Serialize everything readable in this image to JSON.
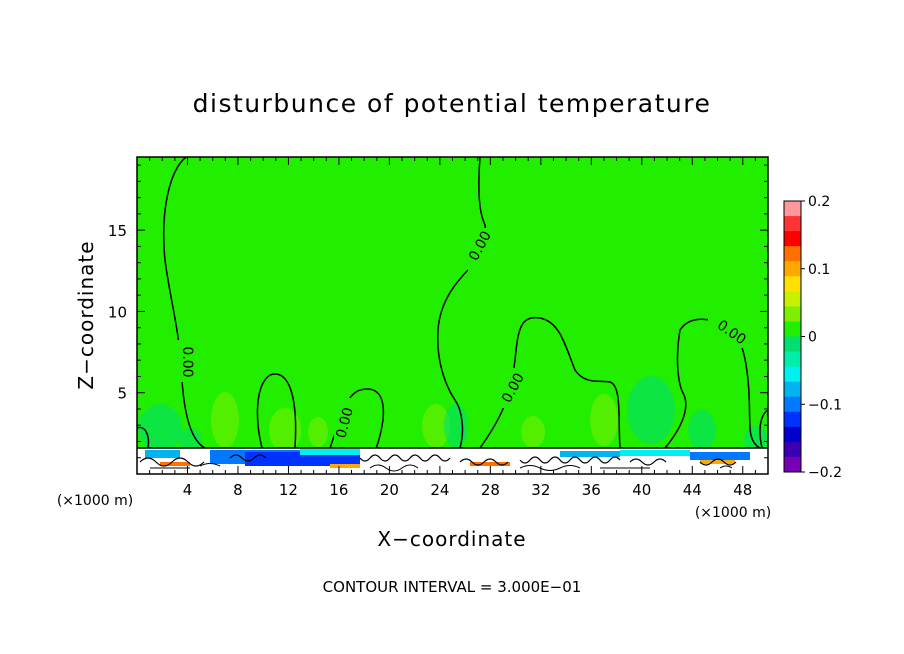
{
  "chart_data": {
    "type": "heatmap",
    "title": "disturbunce of potential temperature",
    "xlabel": "X−coordinate",
    "ylabel": "Z−coordinate",
    "x_unit_left": "(×1000 m)",
    "x_unit_right": "(×1000 m)",
    "footer": "CONTOUR INTERVAL = 3.000E−01",
    "xlim": [
      0,
      50
    ],
    "ylim": [
      0,
      19.5
    ],
    "x_ticks": [
      "4",
      "8",
      "12",
      "16",
      "20",
      "24",
      "28",
      "32",
      "36",
      "40",
      "44",
      "48"
    ],
    "y_ticks": [
      "5",
      "10",
      "15"
    ],
    "background_color": "#22ee00",
    "contour_labels": [
      "0.00",
      "0.00",
      "0.00",
      "0.00",
      "0.00"
    ],
    "colorbar": {
      "range": [
        -0.2,
        0.2
      ],
      "tick_labels": [
        "0.2",
        "0.1",
        "0",
        "−0.1",
        "−0.2"
      ],
      "colors": [
        "#ff9999",
        "#ff3333",
        "#ff0000",
        "#ff7000",
        "#ffa800",
        "#ffe000",
        "#c8f000",
        "#7cf000",
        "#22ee00",
        "#00e070",
        "#00eeaa",
        "#00f0f0",
        "#00b4f0",
        "#0078ff",
        "#0032ff",
        "#0000cc",
        "#3c00b4",
        "#7800b4"
      ]
    }
  }
}
